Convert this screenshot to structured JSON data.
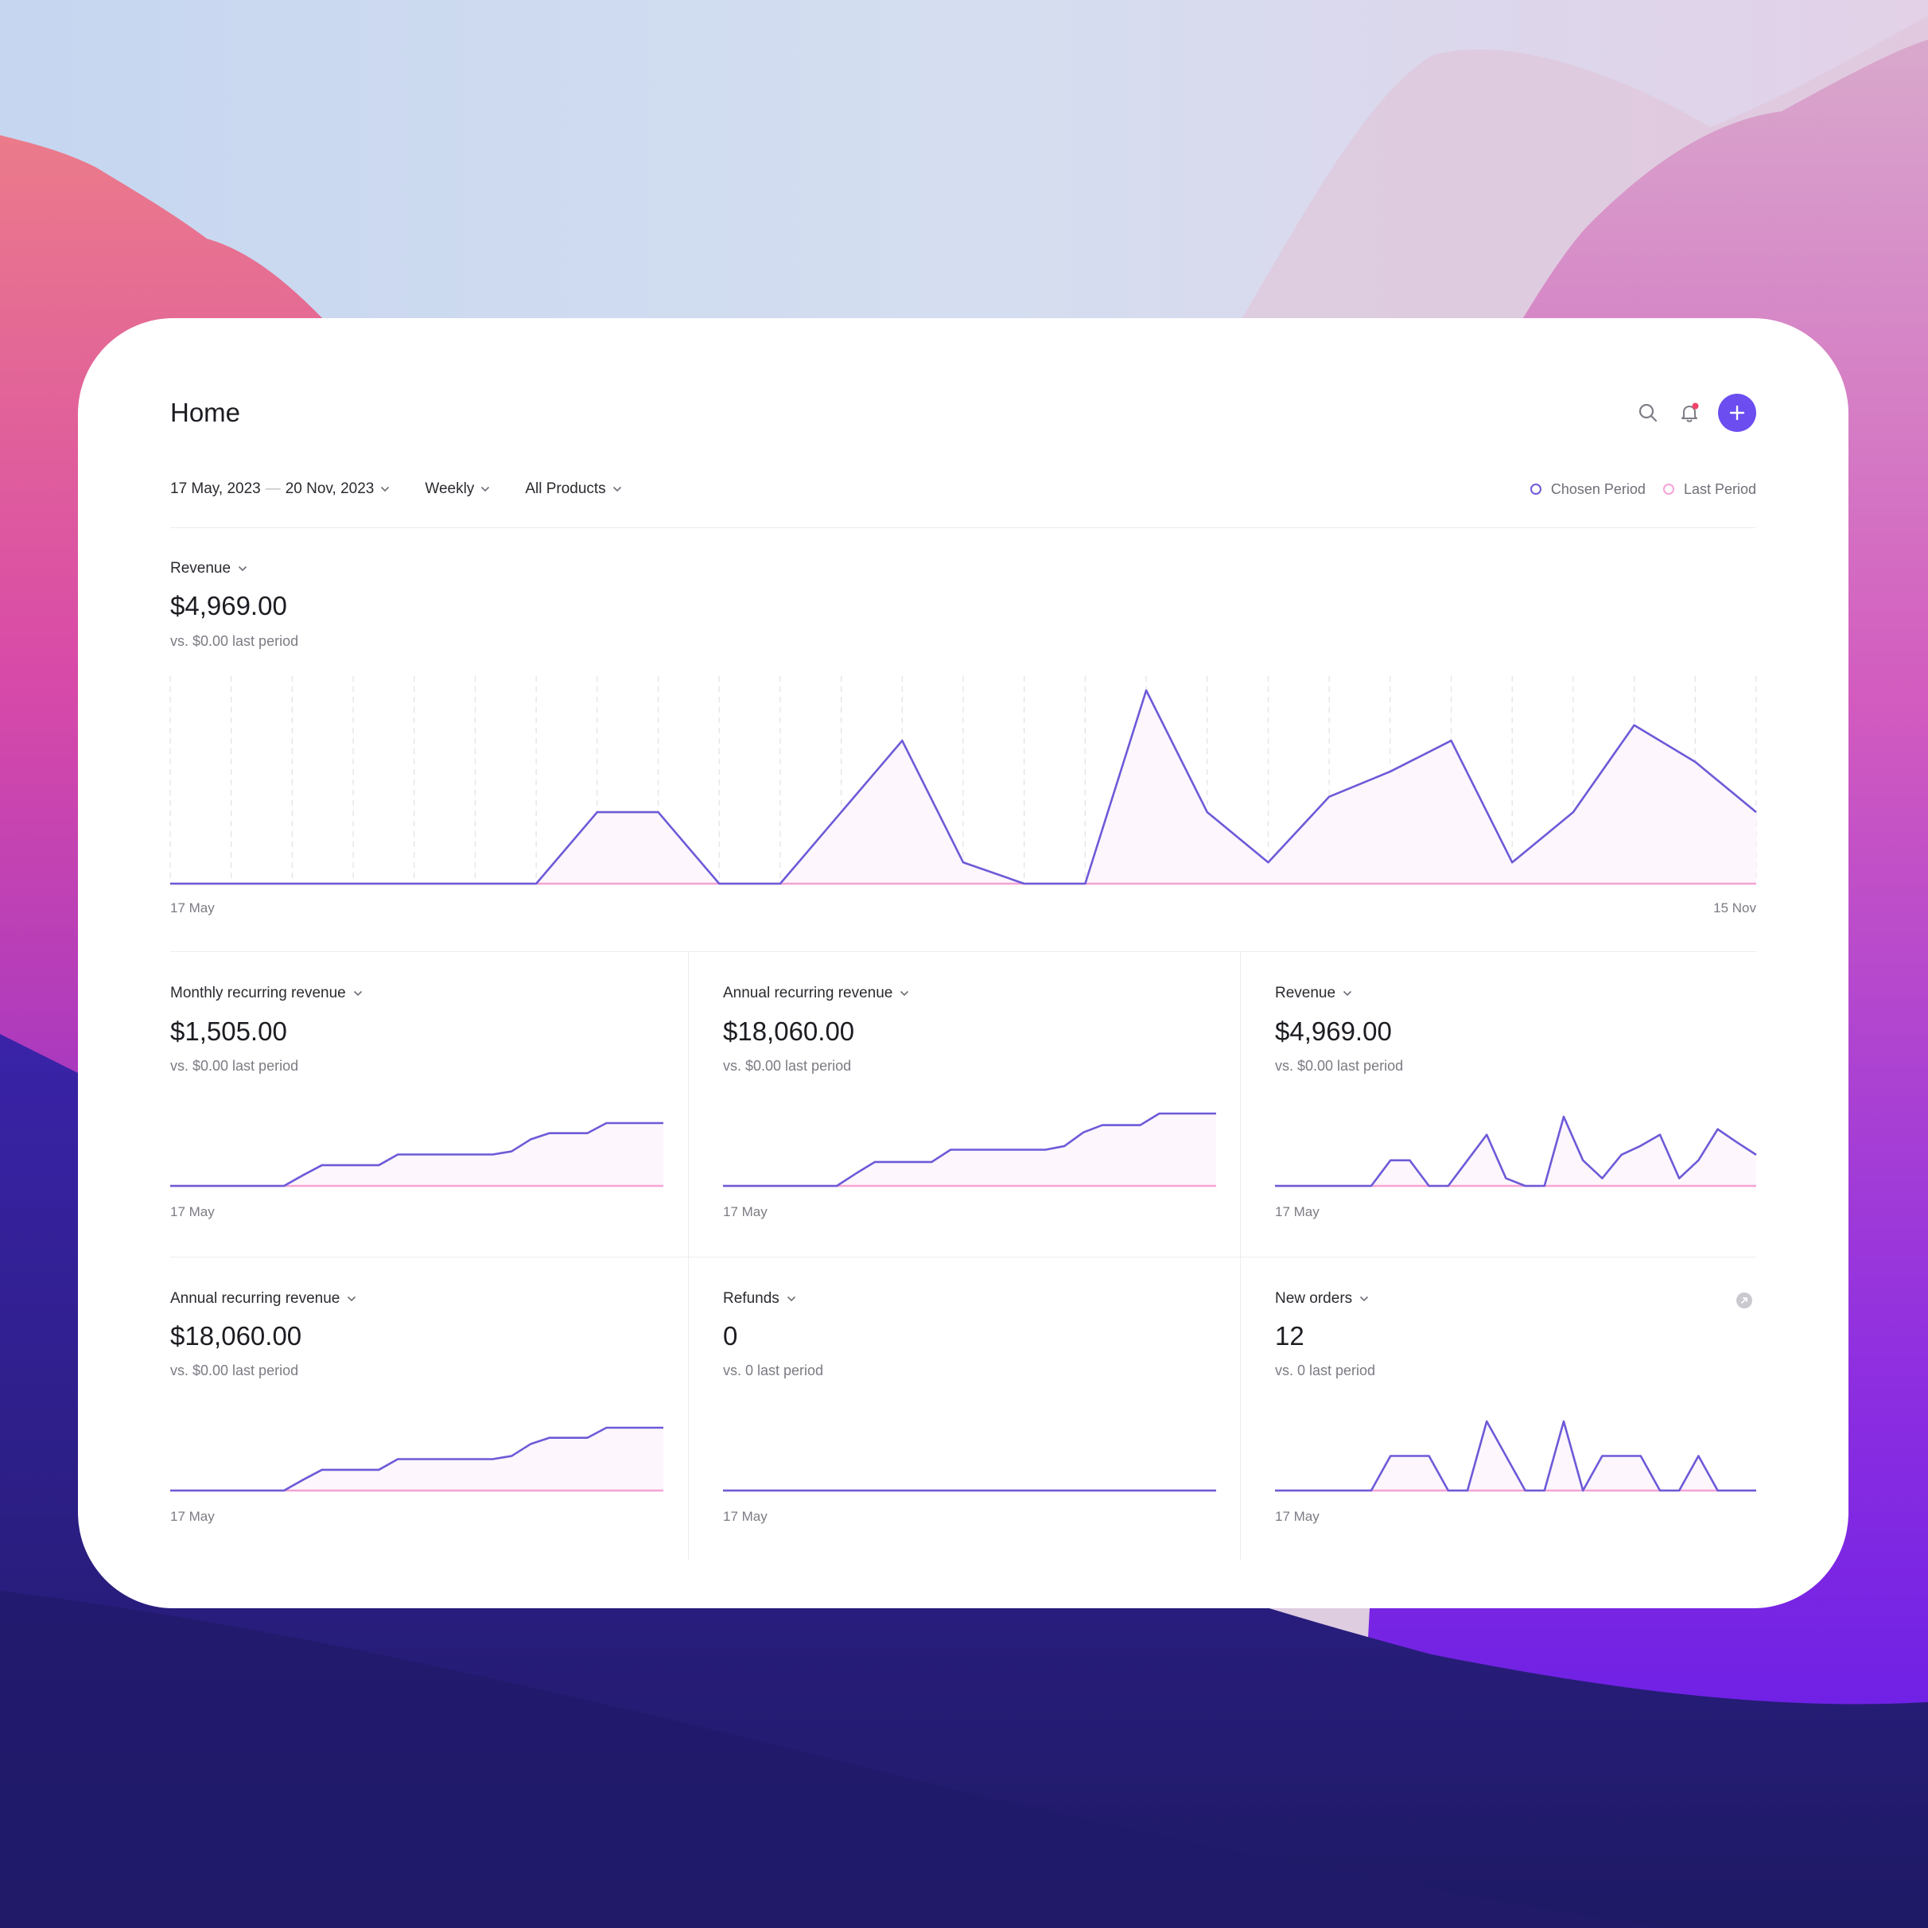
{
  "colors": {
    "accent": "#6b4df0",
    "chosen_line": "#6d5ad8",
    "last_line": "#f5a3d6",
    "area_fill": "#fdf6fc",
    "notification_dot": "#f0436a"
  },
  "header": {
    "title": "Home",
    "icons": [
      "search-icon",
      "bell-icon",
      "plus-icon"
    ]
  },
  "filters": {
    "date_start": "17 May, 2023",
    "date_sep": "—",
    "date_end": "20 Nov, 2023",
    "interval": "Weekly",
    "products": "All Products"
  },
  "legend": {
    "chosen": "Chosen Period",
    "last": "Last Period"
  },
  "main": {
    "label": "Revenue",
    "value": "$4,969.00",
    "sub": "vs. $0.00 last period",
    "x_start": "17 May",
    "x_end": "15 Nov"
  },
  "cards": [
    {
      "label": "Monthly recurring revenue",
      "value": "$1,505.00",
      "sub": "vs. $0.00 last period",
      "x_start": "17 May"
    },
    {
      "label": "Annual recurring revenue",
      "value": "$18,060.00",
      "sub": "vs. $0.00 last period",
      "x_start": "17 May"
    },
    {
      "label": "Revenue",
      "value": "$4,969.00",
      "sub": "vs. $0.00 last period",
      "x_start": "17 May"
    },
    {
      "label": "Annual recurring revenue",
      "value": "$18,060.00",
      "sub": "vs. $0.00 last period",
      "x_start": "17 May"
    },
    {
      "label": "Refunds",
      "value": "0",
      "sub": "vs. 0 last period",
      "x_start": "17 May"
    },
    {
      "label": "New orders",
      "value": "12",
      "sub": "vs. 0 last period",
      "x_start": "17 May",
      "info_icon": "info-icon"
    }
  ],
  "chart_data": [
    {
      "type": "area",
      "title": "Revenue",
      "x_first": "17 May",
      "x_last": "15 Nov",
      "grid": "vertical dashed",
      "series": [
        {
          "name": "Chosen Period",
          "values": [
            0,
            0,
            0,
            0,
            0,
            0,
            0,
            0.37,
            0.37,
            0,
            0,
            0.37,
            0.74,
            0.11,
            0,
            0,
            1.0,
            0.37,
            0.11,
            0.45,
            0.58,
            0.74,
            0.11,
            0.37,
            0.82,
            0.63,
            0.37
          ]
        },
        {
          "name": "Last Period",
          "values": [
            0,
            0,
            0,
            0,
            0,
            0,
            0,
            0,
            0,
            0,
            0,
            0,
            0,
            0,
            0,
            0,
            0,
            0,
            0,
            0,
            0,
            0,
            0,
            0,
            0,
            0,
            0
          ]
        }
      ]
    },
    {
      "type": "area",
      "title": "Monthly recurring revenue",
      "x_first": "17 May",
      "series": [
        {
          "name": "Chosen Period",
          "values": [
            0,
            0,
            0,
            0,
            0,
            0,
            0,
            0.17,
            0.33,
            0.33,
            0.33,
            0.33,
            0.5,
            0.5,
            0.5,
            0.5,
            0.5,
            0.5,
            0.55,
            0.74,
            0.84,
            0.84,
            0.84,
            1.0,
            1.0,
            1.0,
            1.0
          ]
        },
        {
          "name": "Last Period",
          "values": [
            0,
            0,
            0,
            0,
            0,
            0,
            0,
            0,
            0,
            0,
            0,
            0,
            0,
            0,
            0,
            0,
            0,
            0,
            0,
            0,
            0,
            0,
            0,
            0,
            0,
            0,
            0
          ]
        }
      ]
    },
    {
      "type": "area",
      "title": "Annual recurring revenue",
      "x_first": "17 May",
      "series": [
        {
          "name": "Chosen Period",
          "values": [
            0,
            0,
            0,
            0,
            0,
            0,
            0,
            0.17,
            0.33,
            0.33,
            0.33,
            0.33,
            0.5,
            0.5,
            0.5,
            0.5,
            0.5,
            0.5,
            0.55,
            0.74,
            0.84,
            0.84,
            0.84,
            1.0,
            1.0,
            1.0,
            1.0
          ]
        },
        {
          "name": "Last Period",
          "values": [
            0,
            0,
            0,
            0,
            0,
            0,
            0,
            0,
            0,
            0,
            0,
            0,
            0,
            0,
            0,
            0,
            0,
            0,
            0,
            0,
            0,
            0,
            0,
            0,
            0,
            0,
            0
          ]
        }
      ]
    },
    {
      "type": "area",
      "title": "Revenue",
      "x_first": "17 May",
      "series": [
        {
          "name": "Chosen Period",
          "values": [
            0,
            0,
            0,
            0,
            0,
            0,
            0.37,
            0.37,
            0,
            0,
            0.37,
            0.74,
            0.11,
            0,
            0,
            1.0,
            0.37,
            0.11,
            0.45,
            0.58,
            0.74,
            0.11,
            0.37,
            0.82,
            0.63,
            0.45
          ]
        },
        {
          "name": "Last Period",
          "values": [
            0,
            0,
            0,
            0,
            0,
            0,
            0,
            0,
            0,
            0,
            0,
            0,
            0,
            0,
            0,
            0,
            0,
            0,
            0,
            0,
            0,
            0,
            0,
            0,
            0,
            0
          ]
        }
      ]
    },
    {
      "type": "area",
      "title": "Annual recurring revenue",
      "x_first": "17 May",
      "series": [
        {
          "name": "Chosen Period",
          "values": [
            0,
            0,
            0,
            0,
            0,
            0,
            0,
            0.17,
            0.33,
            0.33,
            0.33,
            0.33,
            0.5,
            0.5,
            0.5,
            0.5,
            0.5,
            0.5,
            0.55,
            0.74,
            0.84,
            0.84,
            0.84,
            1.0,
            1.0,
            1.0,
            1.0
          ]
        },
        {
          "name": "Last Period",
          "values": [
            0,
            0,
            0,
            0,
            0,
            0,
            0,
            0,
            0,
            0,
            0,
            0,
            0,
            0,
            0,
            0,
            0,
            0,
            0,
            0,
            0,
            0,
            0,
            0,
            0,
            0,
            0
          ]
        }
      ]
    },
    {
      "type": "area",
      "title": "Refunds",
      "x_first": "17 May",
      "series": [
        {
          "name": "Chosen Period",
          "values": [
            0,
            0,
            0,
            0,
            0,
            0,
            0,
            0,
            0,
            0,
            0,
            0,
            0,
            0,
            0,
            0,
            0,
            0,
            0,
            0,
            0,
            0,
            0,
            0,
            0,
            0
          ]
        },
        {
          "name": "Last Period",
          "values": [
            0,
            0,
            0,
            0,
            0,
            0,
            0,
            0,
            0,
            0,
            0,
            0,
            0,
            0,
            0,
            0,
            0,
            0,
            0,
            0,
            0,
            0,
            0,
            0,
            0,
            0
          ]
        }
      ]
    },
    {
      "type": "area",
      "title": "New orders",
      "x_first": "17 May",
      "series": [
        {
          "name": "Chosen Period",
          "values": [
            0,
            0,
            0,
            0,
            0,
            0,
            0.5,
            0.5,
            0.5,
            0,
            0,
            1.0,
            0.5,
            0,
            0,
            1.0,
            0,
            0.5,
            0.5,
            0.5,
            0,
            0,
            0.5,
            0,
            0,
            0
          ]
        },
        {
          "name": "Last Period",
          "values": [
            0,
            0,
            0,
            0,
            0,
            0,
            0,
            0,
            0,
            0,
            0,
            0,
            0,
            0,
            0,
            0,
            0,
            0,
            0,
            0,
            0,
            0,
            0,
            0,
            0,
            0
          ]
        }
      ]
    }
  ]
}
